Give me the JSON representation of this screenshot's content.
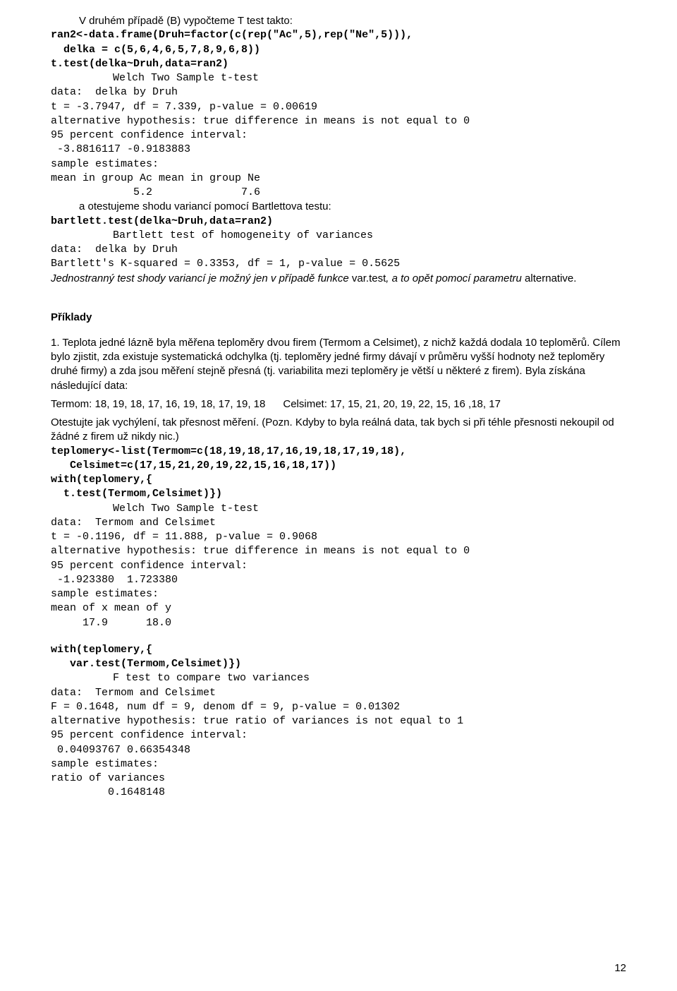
{
  "intro1": "V druhém případě (B) vypočteme T test takto:",
  "code1a": "ran2<-data.frame(Druh=factor(c(rep(\"Ac\",5),rep(\"Ne\",5))),",
  "code1b": "  delka = c(5,6,4,6,5,7,8,9,6,8))",
  "code1c": "t.test(delka~Druh,data=ran2)",
  "out1title": "Welch Two Sample t-test",
  "out1a": "data:  delka by Druh",
  "out1b": "t = -3.7947, df = 7.339, p-value = 0.00619",
  "out1c": "alternative hypothesis: true difference in means is not equal to 0",
  "out1d": "95 percent confidence interval:",
  "out1e": " -3.8816117 -0.9183883",
  "out1f": "sample estimates:",
  "out1g": "mean in group Ac mean in group Ne",
  "out1h": "             5.2              7.6",
  "intro2": "a otestujeme shodu variancí pomocí Bartlettova testu:",
  "code2": "bartlett.test(delka~Druh,data=ran2)",
  "out2title": "Bartlett test of homogeneity of variances",
  "out2a": "data:  delka by Druh",
  "out2b": "Bartlett's K-squared = 0.3353, df = 1, p-value = 0.5625",
  "note1a": "Jednostranný test shody variancí je možný jen v případě funkce ",
  "note1b": "var.test",
  "note1c": ", a to opět pomocí parametru ",
  "note1d": "alternative",
  "note1e": ".",
  "heading": "Příklady",
  "ex1": "1. Teplota jedné lázně byla měřena teploměry dvou firem (Termom a Celsimet), z nichž každá dodala 10 teploměrů. Cílem bylo zjistit, zda existuje systematická odchylka (tj. teploměry jedné firmy dávají v průměru vyšší hodnoty než teploměry druhé firmy) a zda jsou měření stejně přesná (tj. variabilita mezi teploměry je větší u některé z firem). Byla získána následující data:",
  "dataLine": "Termom: 18, 19, 18, 17, 16, 19, 18, 17, 19, 18      Celsimet: 17, 15, 21, 20, 19, 22, 15, 16 ,18, 17",
  "ex1b": "Otestujte jak vychýlení, tak přesnost měření. (Pozn. Kdyby to byla reálná data, tak bych si při téhle přesnosti nekoupil od žádné z firem už nikdy nic.)",
  "code3a": "teplomery<-list(Termom=c(18,19,18,17,16,19,18,17,19,18),",
  "code3b": "   Celsimet=c(17,15,21,20,19,22,15,16,18,17))",
  "code3c": "with(teplomery,{",
  "code3d": "  t.test(Termom,Celsimet)})",
  "out3title": "Welch Two Sample t-test",
  "out3a": "data:  Termom and Celsimet",
  "out3b": "t = -0.1196, df = 11.888, p-value = 0.9068",
  "out3c": "alternative hypothesis: true difference in means is not equal to 0",
  "out3d": "95 percent confidence interval:",
  "out3e": " -1.923380  1.723380",
  "out3f": "sample estimates:",
  "out3g": "mean of x mean of y",
  "out3h": "     17.9      18.0",
  "code4a": "with(teplomery,{",
  "code4b": "   var.test(Termom,Celsimet)})",
  "out4title": "F test to compare two variances",
  "out4a": "data:  Termom and Celsimet",
  "out4b": "F = 0.1648, num df = 9, denom df = 9, p-value = 0.01302",
  "out4c": "alternative hypothesis: true ratio of variances is not equal to 1",
  "out4d": "95 percent confidence interval:",
  "out4e": " 0.04093767 0.66354348",
  "out4f": "sample estimates:",
  "out4g": "ratio of variances",
  "out4h": "         0.1648148",
  "pageNum": "12"
}
